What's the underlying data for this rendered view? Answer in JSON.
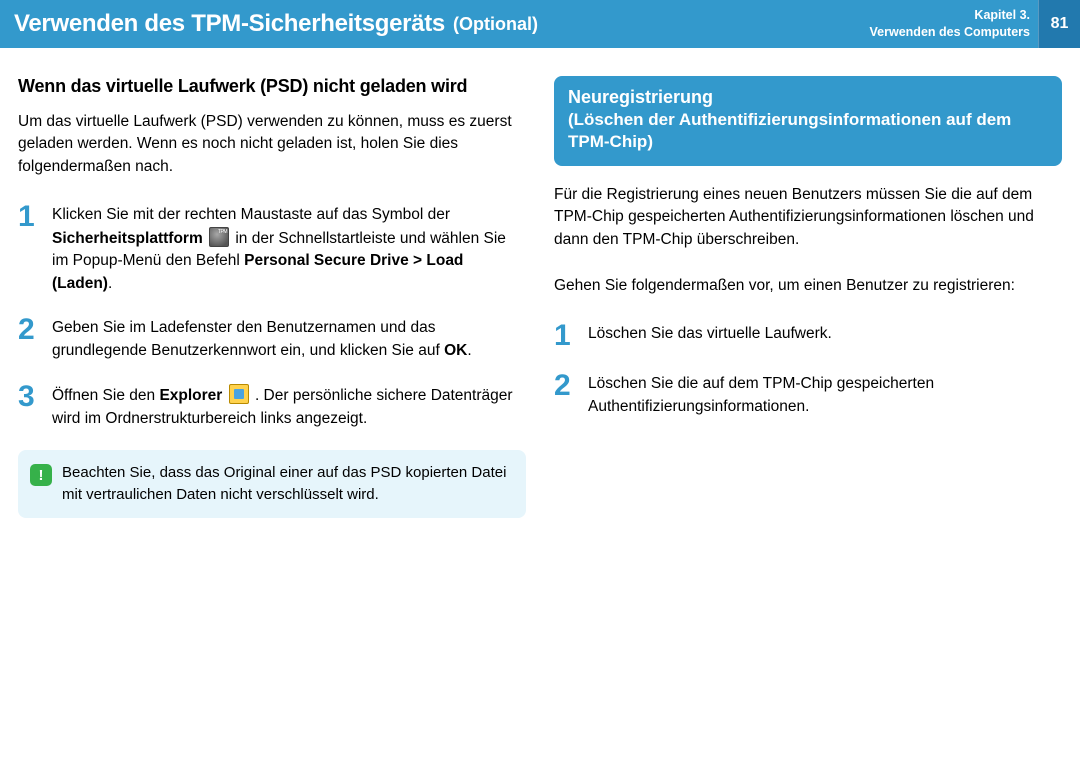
{
  "header": {
    "title": "Verwenden des TPM-Sicherheitsgeräts",
    "optional": "(Optional)",
    "chapter_line1": "Kapitel 3.",
    "chapter_line2": "Verwenden des Computers",
    "page_number": "81"
  },
  "left": {
    "subheading": "Wenn das virtuelle Laufwerk (PSD) nicht geladen wird",
    "intro": "Um das virtuelle Laufwerk (PSD) verwenden zu können, muss es zuerst geladen werden. Wenn es noch nicht geladen ist, holen Sie dies folgendermaßen nach.",
    "step1_a": "Klicken Sie mit der rechten Maustaste auf das Symbol der ",
    "step1_bold1": "Sicherheitsplattform",
    "step1_b": " in der Schnellstartleiste und wählen Sie im Popup-Menü den Befehl ",
    "step1_bold2": "Personal Secure Drive > Load (Laden)",
    "step1_c": ".",
    "step2_a": "Geben Sie im Ladefenster den Benutzernamen und das grundlegende Benutzerkennwort ein, und klicken Sie auf ",
    "step2_bold": "OK",
    "step2_b": ".",
    "step3_a": "Öffnen Sie den ",
    "step3_bold": "Explorer",
    "step3_b": " . Der persönliche sichere Datenträger wird im Ordnerstrukturbereich links angezeigt.",
    "note": "Beachten Sie, dass das Original einer auf das PSD kopierten Datei mit vertraulichen Daten nicht verschlüsselt wird.",
    "note_symbol": "!"
  },
  "right": {
    "heading_line1": "Neuregistrierung",
    "heading_line2": "(Löschen der Authentifizierungsinformationen auf dem TPM-Chip)",
    "para1": "Für die Registrierung eines neuen Benutzers müssen Sie die auf dem TPM-Chip gespeicherten Authentifizierungsinformationen löschen und dann den TPM-Chip überschreiben.",
    "para2": "Gehen Sie folgendermaßen vor, um einen Benutzer zu registrieren:",
    "step1": "Löschen Sie das virtuelle Laufwerk.",
    "step2": "Löschen Sie die auf dem TPM-Chip gespeicherten Authentifizierungsinformationen."
  },
  "numbers": {
    "n1": "1",
    "n2": "2",
    "n3": "3"
  }
}
